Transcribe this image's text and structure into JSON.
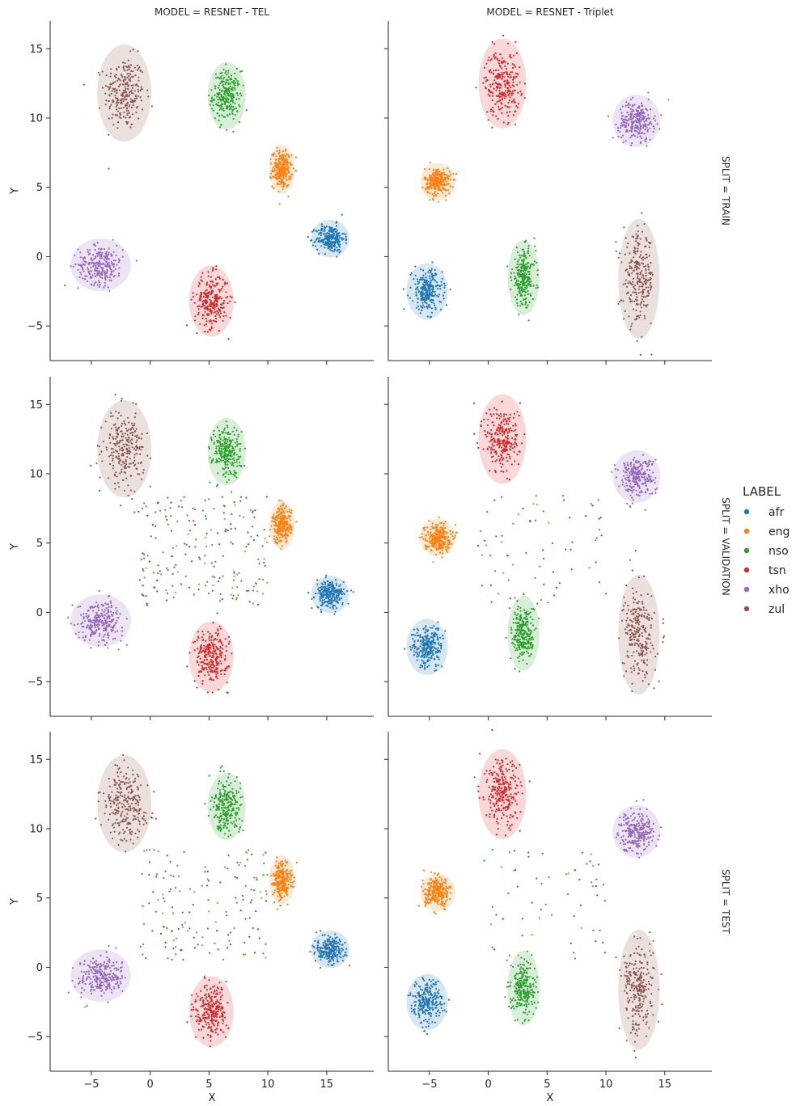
{
  "chart_data": {
    "type": "scatter",
    "facet_grid": {
      "columns": [
        "MODEL = RESNET - TEL",
        "MODEL = RESNET - Triplet"
      ],
      "rows": [
        "SPLIT = TRAIN",
        "SPLIT = VALIDATION",
        "SPLIT = TEST"
      ]
    },
    "xlabel": "X",
    "ylabel": "Y",
    "xlim": [
      -8.5,
      19
    ],
    "ylim": [
      -7.5,
      17
    ],
    "xticks": [
      -5,
      0,
      5,
      10,
      15
    ],
    "yticks": [
      -5,
      0,
      5,
      10,
      15
    ],
    "x_tick_labels": [
      "−5",
      "0",
      "5",
      "10",
      "15"
    ],
    "y_tick_labels": [
      "−5",
      "0",
      "5",
      "10",
      "15"
    ],
    "grid": false,
    "legend": {
      "title": "LABEL",
      "placement": "right",
      "entries": [
        {
          "label": "afr",
          "color": "#1f77b4"
        },
        {
          "label": "eng",
          "color": "#ff7f0e"
        },
        {
          "label": "nso",
          "color": "#2ca02c"
        },
        {
          "label": "tsn",
          "color": "#d62728"
        },
        {
          "label": "xho",
          "color": "#9467bd"
        },
        {
          "label": "zul",
          "color": "#8c564b"
        }
      ]
    },
    "panels": [
      {
        "model": "RESNET - TEL",
        "split": "TRAIN",
        "clusters": [
          {
            "label": "zul",
            "center": [
              -2.2,
              11.8
            ],
            "spread": [
              1.7,
              2.6
            ]
          },
          {
            "label": "nso",
            "center": [
              6.5,
              11.6
            ],
            "spread": [
              1.2,
              1.8
            ]
          },
          {
            "label": "eng",
            "center": [
              11.2,
              6.3
            ],
            "spread": [
              0.8,
              1.3
            ]
          },
          {
            "label": "afr",
            "center": [
              15.3,
              1.3
            ],
            "spread": [
              1.2,
              1.0
            ]
          },
          {
            "label": "xho",
            "center": [
              -4.2,
              -0.6
            ],
            "spread": [
              1.9,
              1.4
            ]
          },
          {
            "label": "tsn",
            "center": [
              5.2,
              -3.2
            ],
            "spread": [
              1.4,
              1.9
            ]
          }
        ],
        "scattered_points": 0
      },
      {
        "model": "RESNET - Triplet",
        "split": "TRAIN",
        "clusters": [
          {
            "label": "tsn",
            "center": [
              1.2,
              12.5
            ],
            "spread": [
              1.5,
              2.4
            ]
          },
          {
            "label": "eng",
            "center": [
              -4.3,
              5.4
            ],
            "spread": [
              1.1,
              1.0
            ]
          },
          {
            "label": "xho",
            "center": [
              12.6,
              9.8
            ],
            "spread": [
              1.5,
              1.4
            ]
          },
          {
            "label": "afr",
            "center": [
              -5.2,
              -2.5
            ],
            "spread": [
              1.3,
              1.5
            ]
          },
          {
            "label": "nso",
            "center": [
              3.0,
              -1.5
            ],
            "spread": [
              1.0,
              2.0
            ]
          },
          {
            "label": "zul",
            "center": [
              12.8,
              -1.6
            ],
            "spread": [
              1.3,
              3.2
            ]
          }
        ],
        "scattered_points": 0
      },
      {
        "model": "RESNET - TEL",
        "split": "VALIDATION",
        "clusters": [
          {
            "label": "zul",
            "center": [
              -2.2,
              11.8
            ],
            "spread": [
              1.7,
              2.6
            ]
          },
          {
            "label": "nso",
            "center": [
              6.5,
              11.6
            ],
            "spread": [
              1.2,
              1.8
            ]
          },
          {
            "label": "eng",
            "center": [
              11.2,
              6.3
            ],
            "spread": [
              0.8,
              1.3
            ]
          },
          {
            "label": "afr",
            "center": [
              15.3,
              1.3
            ],
            "spread": [
              1.2,
              1.0
            ]
          },
          {
            "label": "xho",
            "center": [
              -4.2,
              -0.6
            ],
            "spread": [
              1.9,
              1.4
            ]
          },
          {
            "label": "tsn",
            "center": [
              5.2,
              -3.2
            ],
            "spread": [
              1.4,
              1.9
            ]
          }
        ],
        "scattered_points": 200
      },
      {
        "model": "RESNET - Triplet",
        "split": "VALIDATION",
        "clusters": [
          {
            "label": "tsn",
            "center": [
              1.2,
              12.5
            ],
            "spread": [
              1.5,
              2.4
            ]
          },
          {
            "label": "eng",
            "center": [
              -4.3,
              5.4
            ],
            "spread": [
              1.1,
              1.0
            ]
          },
          {
            "label": "xho",
            "center": [
              12.6,
              9.8
            ],
            "spread": [
              1.5,
              1.4
            ]
          },
          {
            "label": "afr",
            "center": [
              -5.2,
              -2.5
            ],
            "spread": [
              1.3,
              1.5
            ]
          },
          {
            "label": "nso",
            "center": [
              3.0,
              -1.5
            ],
            "spread": [
              1.0,
              2.0
            ]
          },
          {
            "label": "zul",
            "center": [
              12.8,
              -1.6
            ],
            "spread": [
              1.3,
              3.2
            ]
          }
        ],
        "scattered_points": 70
      },
      {
        "model": "RESNET - TEL",
        "split": "TEST",
        "clusters": [
          {
            "label": "zul",
            "center": [
              -2.2,
              11.8
            ],
            "spread": [
              1.7,
              2.6
            ]
          },
          {
            "label": "nso",
            "center": [
              6.5,
              11.6
            ],
            "spread": [
              1.2,
              1.8
            ]
          },
          {
            "label": "eng",
            "center": [
              11.2,
              6.3
            ],
            "spread": [
              0.8,
              1.3
            ]
          },
          {
            "label": "afr",
            "center": [
              15.3,
              1.3
            ],
            "spread": [
              1.2,
              1.0
            ]
          },
          {
            "label": "xho",
            "center": [
              -4.2,
              -0.6
            ],
            "spread": [
              1.9,
              1.4
            ]
          },
          {
            "label": "tsn",
            "center": [
              5.2,
              -3.2
            ],
            "spread": [
              1.4,
              1.9
            ]
          }
        ],
        "scattered_points": 150
      },
      {
        "model": "RESNET - Triplet",
        "split": "TEST",
        "clusters": [
          {
            "label": "tsn",
            "center": [
              1.2,
              12.5
            ],
            "spread": [
              1.5,
              2.4
            ]
          },
          {
            "label": "eng",
            "center": [
              -4.3,
              5.4
            ],
            "spread": [
              1.1,
              1.0
            ]
          },
          {
            "label": "xho",
            "center": [
              12.6,
              9.8
            ],
            "spread": [
              1.5,
              1.4
            ]
          },
          {
            "label": "afr",
            "center": [
              -5.2,
              -2.5
            ],
            "spread": [
              1.3,
              1.5
            ]
          },
          {
            "label": "nso",
            "center": [
              3.0,
              -1.5
            ],
            "spread": [
              1.0,
              2.0
            ]
          },
          {
            "label": "zul",
            "center": [
              12.8,
              -1.6
            ],
            "spread": [
              1.3,
              3.2
            ]
          }
        ],
        "scattered_points": 60
      }
    ]
  }
}
